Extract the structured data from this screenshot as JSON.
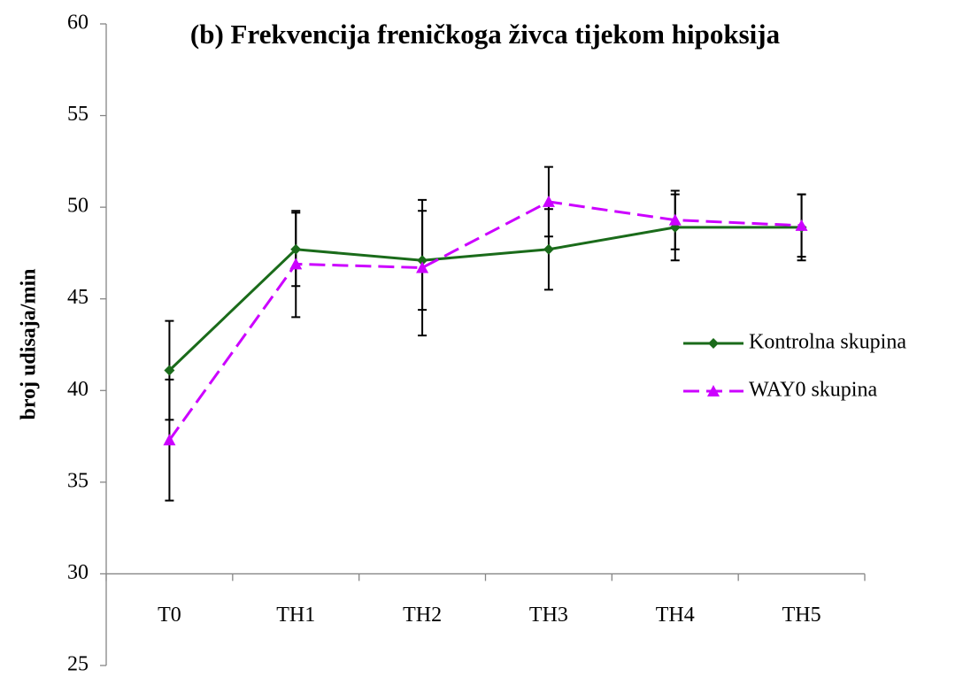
{
  "chart_data": {
    "type": "line",
    "title": "(b) Frekvencija freničkoga živca tijekom hipoksija",
    "y_label": "broj udisaja/min",
    "categories": [
      "T0",
      "TH1",
      "TH2",
      "TH3",
      "TH4",
      "TH5"
    ],
    "series": [
      {
        "name": "Kontrolna skupina",
        "color": "#1a6b1a",
        "marker": "diamond",
        "dash": "solid",
        "values": [
          41.1,
          47.7,
          47.1,
          47.7,
          48.9,
          48.9
        ],
        "errors": [
          2.7,
          2.0,
          2.7,
          2.2,
          1.8,
          1.8
        ]
      },
      {
        "name": "WAY0 skupina",
        "color": "#cc00ff",
        "marker": "triangle",
        "dash": "dashed",
        "values": [
          37.3,
          46.9,
          46.7,
          50.3,
          49.3,
          49.0
        ],
        "errors": [
          3.3,
          2.9,
          3.7,
          1.9,
          1.6,
          1.7
        ]
      }
    ],
    "ylim": [
      25,
      60
    ],
    "yticks": [
      25,
      30,
      35,
      40,
      45,
      50,
      55,
      60
    ],
    "x_axis_crosses": 30,
    "grid": false,
    "legend": "right"
  }
}
